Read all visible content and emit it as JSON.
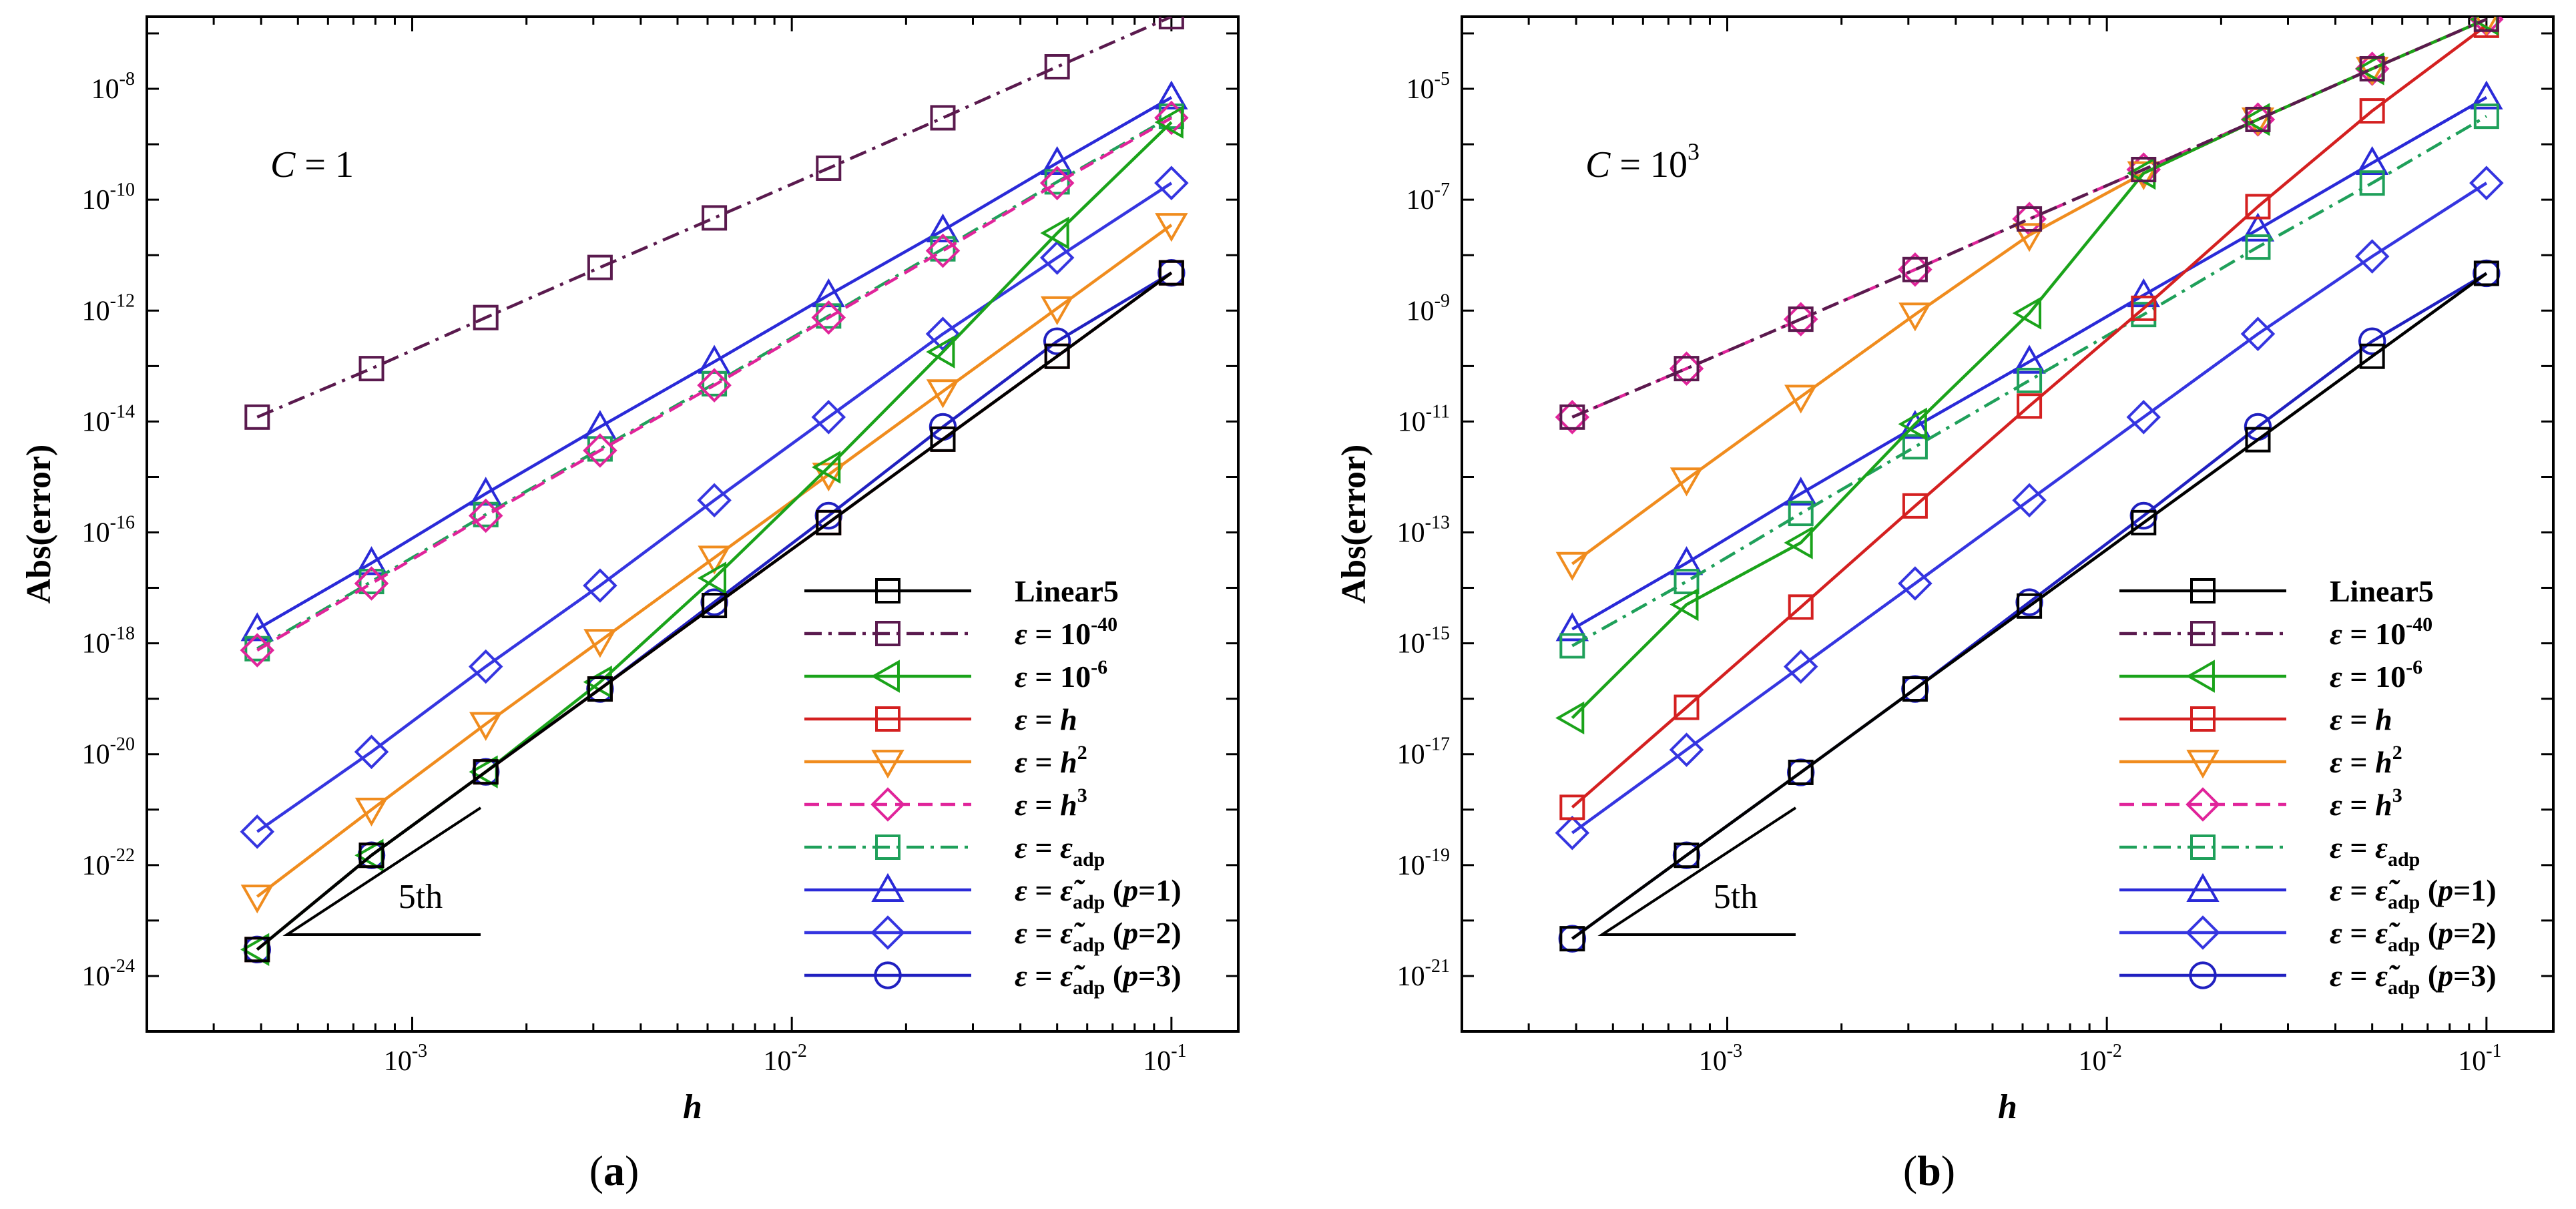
{
  "chart_data": [
    {
      "type": "line",
      "panel_label": "(a)",
      "panel_label_bold": "a",
      "annotation": "C = 1",
      "annotation_symbol": "C",
      "annotation_value": "1",
      "order_label": "5th",
      "xlabel": "h",
      "ylabel": "Abs(error)",
      "xscale": "log",
      "yscale": "log",
      "xlim": [
        0.0002,
        0.15
      ],
      "ylim": [
        1e-25,
        2e-07
      ],
      "xtick_exponents": [
        -3,
        -2,
        -1
      ],
      "ytick_exponents": [
        -24,
        -22,
        -20,
        -18,
        -16,
        -14,
        -12,
        -10,
        -8
      ],
      "legend_position": "bottom-right",
      "x": [
        0.000390625,
        0.00078125,
        0.0015625,
        0.003125,
        0.00625,
        0.0125,
        0.025,
        0.05,
        0.1
      ],
      "series": [
        {
          "name": "Linear5",
          "color": "#000000",
          "dash": "solid",
          "marker": "square",
          "values": [
            3e-24,
            1.5e-22,
            4.8e-21,
            1.5e-19,
            4.8e-18,
            1.5e-16,
            4.8e-15,
            1.5e-13,
            4.8e-12
          ]
        },
        {
          "name": "ε = 10^-40",
          "color": "#5a1a4e",
          "dash": "dashdot",
          "marker": "square",
          "values": [
            1.2e-14,
            9e-14,
            7.5e-13,
            6e-12,
            4.7e-11,
            3.7e-10,
            3e-09,
            2.5e-08,
            2e-07
          ]
        },
        {
          "name": "ε = 10^-6",
          "color": "#1aa31a",
          "dash": "solid",
          "marker": "triangle-left",
          "values": [
            3e-24,
            1.5e-22,
            4.8e-21,
            2e-19,
            1.5e-17,
            1.5e-15,
            1.8e-13,
            2.5e-11,
            2.5e-09
          ]
        },
        {
          "name": "ε = h",
          "color": "#d42020",
          "dash": "solid",
          "marker": "square",
          "values": [
            3e-24,
            1.5e-22,
            4.8e-21,
            1.5e-19,
            4.8e-18,
            1.5e-16,
            4.8e-15,
            1.5e-13,
            4.8e-12
          ]
        },
        {
          "name": "ε = h^2",
          "color": "#f08c1e",
          "dash": "solid",
          "marker": "triangle-down",
          "values": [
            2.7e-23,
            1e-21,
            3.5e-20,
            1.1e-18,
            3.5e-17,
            1.1e-15,
            3.5e-14,
            1.1e-12,
            3.5e-11
          ]
        },
        {
          "name": "ε = h^3",
          "color": "#e0249a",
          "dash": "dash",
          "marker": "diamond",
          "values": [
            7.5e-19,
            1.2e-17,
            2e-16,
            3e-15,
            4.5e-14,
            7.5e-13,
            1.2e-11,
            2e-10,
            3e-09
          ]
        },
        {
          "name": "ε = ε_adp",
          "color": "#1fa05a",
          "dash": "dashdot",
          "marker": "square",
          "values": [
            8e-19,
            1.3e-17,
            2.1e-16,
            3.2e-15,
            4.8e-14,
            8e-13,
            1.3e-11,
            2.1e-10,
            3.2e-09
          ]
        },
        {
          "name": "ε = ε̃_adp (p=1)",
          "color": "#2a2ad8",
          "dash": "solid",
          "marker": "triangle-up",
          "values": [
            1.8e-18,
            2.8e-17,
            5e-16,
            8e-15,
            1.2e-13,
            1.9e-12,
            2.8e-11,
            4.6e-10,
            7e-09
          ]
        },
        {
          "name": "ε = ε̃_adp (p=2)",
          "color": "#3535e0",
          "dash": "solid",
          "marker": "diamond",
          "values": [
            4e-22,
            1.1e-20,
            3.8e-19,
            1.1e-17,
            3.8e-16,
            1.2e-14,
            3.8e-13,
            9e-12,
            2e-10
          ]
        },
        {
          "name": "ε = ε̃_adp (p=3)",
          "color": "#2020c0",
          "dash": "solid",
          "marker": "circle",
          "values": [
            3e-24,
            1.5e-22,
            4.8e-21,
            1.5e-19,
            5.5e-18,
            2e-16,
            8e-15,
            2.8e-13,
            4.8e-12
          ]
        }
      ]
    },
    {
      "type": "line",
      "panel_label": "(b)",
      "panel_label_bold": "b",
      "annotation": "C = 10^3",
      "annotation_symbol": "C",
      "annotation_value": "10",
      "annotation_exponent": "3",
      "order_label": "5th",
      "xlabel": "h",
      "ylabel": "Abs(error)",
      "xscale": "log",
      "yscale": "log",
      "xlim": [
        0.0002,
        0.15
      ],
      "ylim": [
        1e-22,
        0.0002
      ],
      "xtick_exponents": [
        -3,
        -2,
        -1
      ],
      "ytick_exponents": [
        -21,
        -19,
        -17,
        -15,
        -13,
        -11,
        -9,
        -7,
        -5
      ],
      "legend_position": "bottom-right",
      "x": [
        0.000390625,
        0.00078125,
        0.0015625,
        0.003125,
        0.00625,
        0.0125,
        0.025,
        0.05,
        0.1
      ],
      "series": [
        {
          "name": "Linear5",
          "color": "#000000",
          "dash": "solid",
          "marker": "square",
          "values": [
            4.7e-21,
            1.5e-19,
            4.7e-18,
            1.5e-16,
            4.7e-15,
            1.5e-13,
            4.7e-12,
            1.5e-10,
            4.7e-09
          ]
        },
        {
          "name": "ε = 10^-40",
          "color": "#5a1a4e",
          "dash": "dashdot",
          "marker": "square",
          "values": [
            1.2e-11,
            9e-11,
            7e-10,
            5.5e-09,
            4.5e-08,
            3.5e-07,
            2.8e-06,
            2.3e-05,
            0.00018
          ]
        },
        {
          "name": "ε = 10^-6",
          "color": "#1aa31a",
          "dash": "solid",
          "marker": "triangle-left",
          "values": [
            4.5e-17,
            5e-15,
            6.5e-14,
            9e-12,
            9e-10,
            3e-07,
            2.8e-06,
            2.3e-05,
            0.00018
          ]
        },
        {
          "name": "ε = h",
          "color": "#d42020",
          "dash": "solid",
          "marker": "square",
          "values": [
            1.1e-18,
            7e-17,
            4.5e-15,
            3e-13,
            1.9e-11,
            1.1e-09,
            7.5e-08,
            4e-06,
            0.00014
          ]
        },
        {
          "name": "ε = h^2",
          "color": "#f08c1e",
          "dash": "solid",
          "marker": "triangle-down",
          "values": [
            2.7e-14,
            9e-13,
            2.8e-11,
            8.5e-10,
            2.3e-08,
            3e-07,
            2.8e-06,
            2.3e-05,
            0.00018
          ]
        },
        {
          "name": "ε = h^3",
          "color": "#e0249a",
          "dash": "dash",
          "marker": "diamond",
          "values": [
            1.2e-11,
            9e-11,
            7e-10,
            5.5e-09,
            4.5e-08,
            3.5e-07,
            2.8e-06,
            2.3e-05,
            0.00018
          ]
        },
        {
          "name": "ε = ε_adp",
          "color": "#1fa05a",
          "dash": "dashdot",
          "marker": "square",
          "values": [
            9e-16,
            1.3e-14,
            2.2e-13,
            3.5e-12,
            5.5e-11,
            8.5e-10,
            1.4e-08,
            2e-07,
            3.2e-06
          ]
        },
        {
          "name": "ε = ε̃_adp (p=1)",
          "color": "#2a2ad8",
          "dash": "solid",
          "marker": "triangle-up",
          "values": [
            1.8e-15,
            2.8e-14,
            5e-13,
            8e-12,
            1.2e-10,
            1.9e-09,
            2.9e-08,
            4.6e-07,
            7e-06
          ]
        },
        {
          "name": "ε = ε̃_adp (p=2)",
          "color": "#3535e0",
          "dash": "solid",
          "marker": "diamond",
          "values": [
            3.8e-19,
            1.2e-17,
            3.8e-16,
            1.2e-14,
            3.8e-13,
            1.2e-11,
            3.8e-10,
            9.5e-09,
            2e-07
          ]
        },
        {
          "name": "ε = ε̃_adp (p=3)",
          "color": "#2020c0",
          "dash": "solid",
          "marker": "circle",
          "values": [
            4.7e-21,
            1.5e-19,
            4.7e-18,
            1.5e-16,
            5.5e-15,
            2e-13,
            8e-12,
            2.8e-10,
            4.7e-09
          ]
        }
      ]
    }
  ]
}
